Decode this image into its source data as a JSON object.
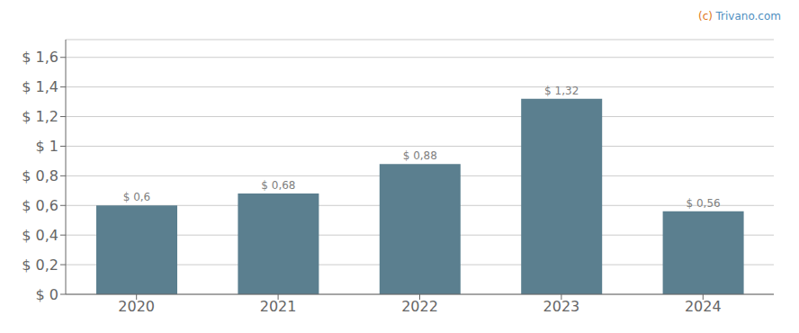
{
  "chart_data": {
    "type": "bar",
    "categories": [
      "2020",
      "2021",
      "2022",
      "2023",
      "2024"
    ],
    "values": [
      0.6,
      0.68,
      0.88,
      1.32,
      0.56
    ],
    "value_labels": [
      "$ 0,6",
      "$ 0,68",
      "$ 0,88",
      "$ 1,32",
      "$ 0,56"
    ],
    "data_labels": true,
    "color": "#5b7f8f",
    "ylim": [
      0,
      1.72
    ],
    "yticks": [
      {
        "value": 0,
        "label": "$ 0"
      },
      {
        "value": 0.2,
        "label": "$ 0,2"
      },
      {
        "value": 0.4,
        "label": "$ 0,4"
      },
      {
        "value": 0.6,
        "label": "$ 0,6"
      },
      {
        "value": 0.8,
        "label": "$ 0,8"
      },
      {
        "value": 1.0,
        "label": "$ 1"
      },
      {
        "value": 1.2,
        "label": "$ 1,2"
      },
      {
        "value": 1.4,
        "label": "$ 1,4"
      },
      {
        "value": 1.6,
        "label": "$ 1,6"
      }
    ],
    "grid": true,
    "annotations": [
      {
        "text": "(c)",
        "color": "#e07820"
      },
      {
        "text": "Trivano.com",
        "color": "#4f8fbf"
      }
    ]
  }
}
